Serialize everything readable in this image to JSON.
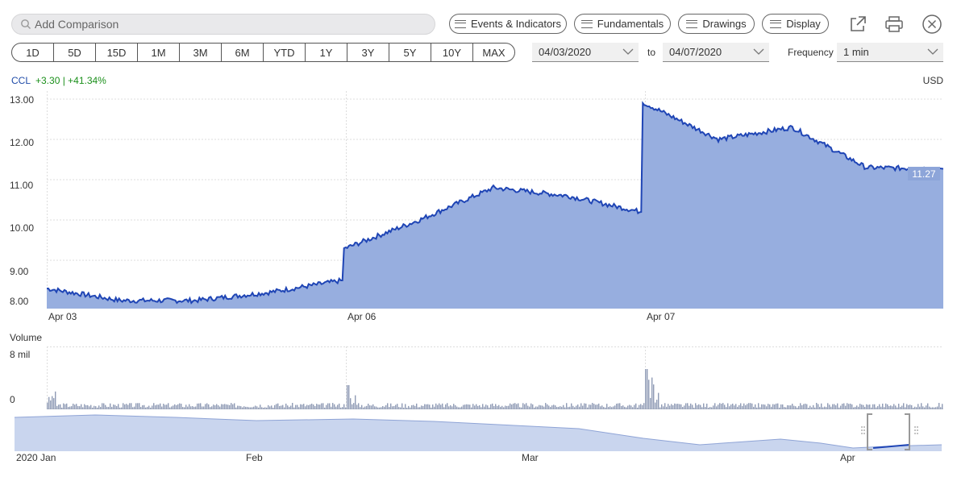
{
  "search": {
    "placeholder": "Add Comparison"
  },
  "toolbar": {
    "events": "Events & Indicators",
    "fundamentals": "Fundamentals",
    "drawings": "Drawings",
    "display": "Display"
  },
  "ranges": [
    "1D",
    "5D",
    "15D",
    "1M",
    "3M",
    "6M",
    "YTD",
    "1Y",
    "3Y",
    "5Y",
    "10Y",
    "MAX"
  ],
  "dates": {
    "from": "04/03/2020",
    "to_label": "to",
    "to": "04/07/2020"
  },
  "frequency": {
    "label": "Frequency",
    "value": "1 min"
  },
  "quote": {
    "ticker": "CCL",
    "change": "+3.30 | +41.34%",
    "currency": "USD",
    "last": "11.27"
  },
  "axes": {
    "y_ticks": [
      "13.00",
      "12.00",
      "11.00",
      "10.00",
      "9.00",
      "8.00"
    ],
    "x_ticks": [
      "Apr 03",
      "Apr 06",
      "Apr 07"
    ],
    "volume_label": "Volume",
    "volume_ticks": [
      "8 mil",
      "0"
    ],
    "nav_ticks": [
      "2020 Jan",
      "Feb",
      "Mar",
      "Apr"
    ]
  },
  "colors": {
    "line": "#1f45b5",
    "fill": "#97aedf",
    "volume": "#8f9bb5",
    "nav_fill": "#c9d5ee",
    "up": "#1a8f1a"
  },
  "chart_data": {
    "type": "area",
    "series": [
      {
        "x": [
          "Apr 03 open",
          "Apr 03 mid-morning",
          "Apr 03 midday",
          "Apr 03 afternoon",
          "Apr 03 close",
          "Apr 06 open",
          "Apr 06 mid-morning",
          "Apr 06 midday",
          "Apr 06 afternoon",
          "Apr 06 close",
          "Apr 07 open",
          "Apr 07 mid-morning",
          "Apr 07 midday",
          "Apr 07 afternoon",
          "Apr 07 close"
        ],
        "values": [
          8.3,
          8.0,
          8.0,
          8.2,
          8.5,
          9.3,
          10.0,
          10.8,
          10.6,
          10.2,
          12.9,
          12.0,
          12.3,
          11.3,
          11.27
        ]
      }
    ],
    "ylim": [
      7.8,
      13.2
    ]
  }
}
